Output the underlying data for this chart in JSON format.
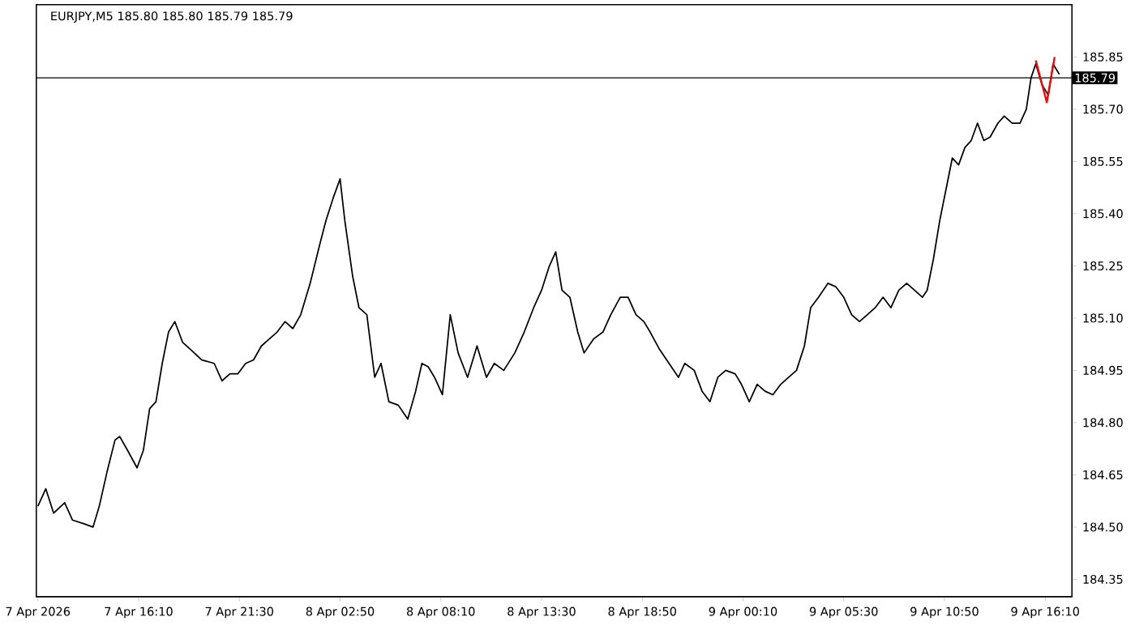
{
  "chart_data": {
    "type": "line",
    "title": "EURJPY,M5  185.80 185.80 185.79 185.79",
    "xlim": [
      "2026-04-07T10:45",
      "2026-04-09T17:35"
    ],
    "ylim": [
      184.3,
      186.0
    ],
    "xticks": [
      {
        "value": "2026-04-07T10:50",
        "label": "7 Apr 2026"
      },
      {
        "value": "2026-04-07T16:10",
        "label": "7 Apr 16:10"
      },
      {
        "value": "2026-04-07T21:30",
        "label": "7 Apr 21:30"
      },
      {
        "value": "2026-04-08T02:50",
        "label": "8 Apr 02:50"
      },
      {
        "value": "2026-04-08T08:10",
        "label": "8 Apr 08:10"
      },
      {
        "value": "2026-04-08T13:30",
        "label": "8 Apr 13:30"
      },
      {
        "value": "2026-04-08T18:50",
        "label": "8 Apr 18:50"
      },
      {
        "value": "2026-04-09T00:10",
        "label": "9 Apr 00:10"
      },
      {
        "value": "2026-04-09T05:30",
        "label": "9 Apr 05:30"
      },
      {
        "value": "2026-04-09T10:50",
        "label": "9 Apr 10:50"
      },
      {
        "value": "2026-04-09T16:10",
        "label": "9 Apr 16:10"
      }
    ],
    "yticks": [
      184.35,
      {
        "value": 184.5,
        "label": "184.50"
      },
      184.65,
      {
        "value": 184.8,
        "label": "184.80"
      },
      184.95,
      {
        "value": 185.1,
        "label": "185.10"
      },
      185.25,
      {
        "value": 185.4,
        "label": "185.40"
      },
      185.55,
      {
        "value": 185.7,
        "label": "185.70"
      },
      185.85
    ],
    "grid": false,
    "marker": "none",
    "ref_lines": [
      {
        "axis": "y",
        "value": 185.79,
        "label": "185.79",
        "color": "#000000"
      }
    ],
    "series": [
      {
        "color": "#000000",
        "x": [
          "2026-04-07T10:50",
          "2026-04-07T11:15",
          "2026-04-07T11:40",
          "2026-04-07T12:15",
          "2026-04-07T12:40",
          "2026-04-07T13:15",
          "2026-04-07T13:45",
          "2026-04-07T14:05",
          "2026-04-07T14:30",
          "2026-04-07T14:55",
          "2026-04-07T15:10",
          "2026-04-07T15:35",
          "2026-04-07T16:05",
          "2026-04-07T16:25",
          "2026-04-07T16:45",
          "2026-04-07T17:05",
          "2026-04-07T17:25",
          "2026-04-07T17:45",
          "2026-04-07T18:05",
          "2026-04-07T18:30",
          "2026-04-07T18:55",
          "2026-04-07T19:30",
          "2026-04-07T20:10",
          "2026-04-07T20:35",
          "2026-04-07T21:00",
          "2026-04-07T21:25",
          "2026-04-07T21:50",
          "2026-04-07T22:15",
          "2026-04-07T22:40",
          "2026-04-07T23:05",
          "2026-04-07T23:30",
          "2026-04-07T23:55",
          "2026-04-08T00:20",
          "2026-04-08T00:45",
          "2026-04-08T01:15",
          "2026-04-08T01:45",
          "2026-04-08T02:05",
          "2026-04-08T02:30",
          "2026-04-08T02:50",
          "2026-04-08T03:05",
          "2026-04-08T03:30",
          "2026-04-08T03:50",
          "2026-04-08T04:15",
          "2026-04-08T04:40",
          "2026-04-08T05:00",
          "2026-04-08T05:25",
          "2026-04-08T05:55",
          "2026-04-08T06:25",
          "2026-04-08T06:50",
          "2026-04-08T07:10",
          "2026-04-08T07:30",
          "2026-04-08T07:50",
          "2026-04-08T08:15",
          "2026-04-08T08:40",
          "2026-04-08T09:05",
          "2026-04-08T09:35",
          "2026-04-08T10:05",
          "2026-04-08T10:35",
          "2026-04-08T11:00",
          "2026-04-08T11:30",
          "2026-04-08T12:05",
          "2026-04-08T12:35",
          "2026-04-08T13:05",
          "2026-04-08T13:30",
          "2026-04-08T13:55",
          "2026-04-08T14:15",
          "2026-04-08T14:35",
          "2026-04-08T15:00",
          "2026-04-08T15:25",
          "2026-04-08T15:45",
          "2026-04-08T16:15",
          "2026-04-08T16:45",
          "2026-04-08T17:10",
          "2026-04-08T17:40",
          "2026-04-08T18:05",
          "2026-04-08T18:30",
          "2026-04-08T18:55",
          "2026-04-08T19:15",
          "2026-04-08T19:45",
          "2026-04-08T20:15",
          "2026-04-08T20:45",
          "2026-04-08T21:05",
          "2026-04-08T21:35",
          "2026-04-08T22:00",
          "2026-04-08T22:25",
          "2026-04-08T22:50",
          "2026-04-08T23:15",
          "2026-04-08T23:45",
          "2026-04-09T00:05",
          "2026-04-09T00:30",
          "2026-04-09T00:55",
          "2026-04-09T01:20",
          "2026-04-09T01:45",
          "2026-04-09T02:10",
          "2026-04-09T02:35",
          "2026-04-09T03:00",
          "2026-04-09T03:25",
          "2026-04-09T03:45",
          "2026-04-09T04:10",
          "2026-04-09T04:40",
          "2026-04-09T05:05",
          "2026-04-09T05:30",
          "2026-04-09T05:55",
          "2026-04-09T06:20",
          "2026-04-09T06:45",
          "2026-04-09T07:10",
          "2026-04-09T07:35",
          "2026-04-09T08:00",
          "2026-04-09T08:25",
          "2026-04-09T08:50",
          "2026-04-09T09:15",
          "2026-04-09T09:40",
          "2026-04-09T09:55",
          "2026-04-09T10:15",
          "2026-04-09T10:35",
          "2026-04-09T10:55",
          "2026-04-09T11:15",
          "2026-04-09T11:35",
          "2026-04-09T11:55",
          "2026-04-09T12:15",
          "2026-04-09T12:35",
          "2026-04-09T12:55",
          "2026-04-09T13:15",
          "2026-04-09T13:40",
          "2026-04-09T14:00",
          "2026-04-09T14:25",
          "2026-04-09T14:50",
          "2026-04-09T15:10",
          "2026-04-09T15:25",
          "2026-04-09T15:40",
          "2026-04-09T16:00",
          "2026-04-09T16:20",
          "2026-04-09T16:35",
          "2026-04-09T16:55"
        ],
        "values": [
          184.56,
          184.61,
          184.54,
          184.57,
          184.52,
          184.51,
          184.5,
          184.56,
          184.66,
          184.75,
          184.76,
          184.72,
          184.67,
          184.72,
          184.84,
          184.86,
          184.97,
          185.06,
          185.09,
          185.03,
          185.01,
          184.98,
          184.97,
          184.92,
          184.94,
          184.94,
          184.97,
          184.98,
          185.02,
          185.04,
          185.06,
          185.09,
          185.07,
          185.11,
          185.2,
          185.31,
          185.38,
          185.45,
          185.5,
          185.38,
          185.22,
          185.13,
          185.11,
          184.93,
          184.97,
          184.86,
          184.85,
          184.81,
          184.89,
          184.97,
          184.96,
          184.93,
          184.88,
          185.11,
          185.0,
          184.93,
          185.02,
          184.93,
          184.97,
          184.95,
          185.0,
          185.06,
          185.13,
          185.18,
          185.25,
          185.29,
          185.18,
          185.16,
          185.06,
          185.0,
          185.04,
          185.06,
          185.11,
          185.16,
          185.16,
          185.11,
          185.09,
          185.06,
          185.01,
          184.97,
          184.93,
          184.97,
          184.95,
          184.89,
          184.86,
          184.93,
          184.95,
          184.94,
          184.91,
          184.86,
          184.91,
          184.89,
          184.88,
          184.91,
          184.93,
          184.95,
          185.02,
          185.13,
          185.16,
          185.2,
          185.19,
          185.16,
          185.11,
          185.09,
          185.11,
          185.13,
          185.16,
          185.13,
          185.18,
          185.2,
          185.18,
          185.16,
          185.18,
          185.27,
          185.38,
          185.47,
          185.56,
          185.54,
          185.59,
          185.61,
          185.66,
          185.61,
          185.62,
          185.66,
          185.68,
          185.66,
          185.66,
          185.7,
          185.79,
          185.83,
          185.77,
          185.74,
          185.83,
          185.8
        ]
      },
      {
        "color": "#ff0000",
        "x": [
          "2026-04-09T15:40",
          "2026-04-09T16:15",
          "2026-04-09T16:40"
        ],
        "values": [
          185.84,
          185.72,
          185.85
        ]
      }
    ]
  }
}
